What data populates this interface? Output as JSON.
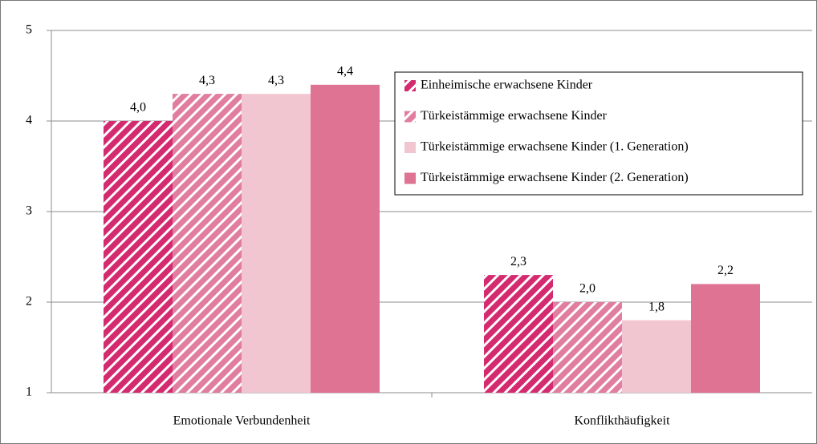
{
  "chart_data": {
    "type": "bar",
    "categories": [
      "Emotionale Verbundenheit",
      "Konflikthäufigkeit"
    ],
    "series": [
      {
        "name": "Einheimische erwachsene Kinder",
        "color": "#d42a70",
        "hatch": true,
        "values": [
          4.0,
          2.3
        ],
        "value_labels": [
          "4,0",
          "2,3"
        ]
      },
      {
        "name": "Türkeistämmige erwachsene Kinder",
        "color": "#e17ea0",
        "hatch": true,
        "values": [
          4.3,
          2.0
        ],
        "value_labels": [
          "4,3",
          "2,0"
        ]
      },
      {
        "name": "Türkeistämmige erwachsene Kinder (1. Generation)",
        "color": "#f2c6d1",
        "hatch": false,
        "values": [
          4.3,
          1.8
        ],
        "value_labels": [
          "4,3",
          "1,8"
        ]
      },
      {
        "name": "Türkeistämmige erwachsene Kinder (2. Generation)",
        "color": "#de7393",
        "hatch": false,
        "values": [
          4.4,
          2.2
        ],
        "value_labels": [
          "4,4",
          "2,2"
        ]
      }
    ],
    "ylim": [
      1,
      5
    ],
    "yticks": [
      1,
      2,
      3,
      4,
      5
    ],
    "grid": true,
    "legend": "upper right"
  }
}
